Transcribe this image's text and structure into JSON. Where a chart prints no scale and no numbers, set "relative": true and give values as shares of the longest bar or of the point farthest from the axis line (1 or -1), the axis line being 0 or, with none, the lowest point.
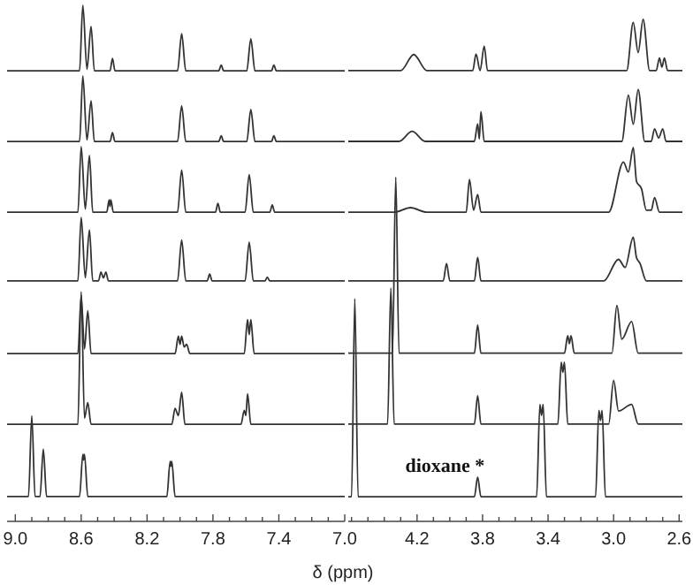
{
  "chart_data": [
    {
      "type": "line",
      "relative": true,
      "xlabel": "δ (ppm)",
      "xlim": [
        9.05,
        7.0
      ],
      "xticks": [
        {
          "value": 9.0,
          "label": "9.0"
        },
        {
          "value": 8.9,
          "label": null
        },
        {
          "value": 8.8,
          "label": null
        },
        {
          "value": 8.7,
          "label": null
        },
        8.6,
        {
          "value": 8.5,
          "label": null
        },
        {
          "value": 8.4,
          "label": null
        },
        {
          "value": 8.3,
          "label": null
        },
        8.2,
        {
          "value": 8.1,
          "label": null
        },
        {
          "value": 8.0,
          "label": null
        },
        {
          "value": 7.9,
          "label": null
        },
        7.8,
        {
          "value": 7.7,
          "label": null
        },
        {
          "value": 7.6,
          "label": null
        },
        {
          "value": 7.5,
          "label": null
        },
        7.4,
        {
          "value": 7.3,
          "label": null
        },
        {
          "value": 7.2,
          "label": null
        },
        {
          "value": 7.1,
          "label": null
        },
        {
          "value": 7.0,
          "label": "7.0"
        }
      ],
      "series": [
        {
          "color": "#333333",
          "x": [
            9.05,
            8.61,
            8.59,
            8.565,
            8.54,
            8.52,
            8.425,
            8.41,
            8.395,
            8.015,
            7.99,
            7.965,
            7.765,
            7.75,
            7.735,
            7.595,
            7.57,
            7.545,
            7.445,
            7.43,
            7.415,
            7.0
          ],
          "values": [
            0.873,
            0.873,
            1.0,
            0.876,
            0.959,
            0.873,
            0.873,
            0.897,
            0.873,
            0.873,
            0.945,
            0.873,
            0.873,
            0.884,
            0.873,
            0.873,
            0.935,
            0.873,
            0.873,
            0.884,
            0.873,
            0.873
          ]
        },
        {
          "color": "#333333",
          "x": [
            9.05,
            8.61,
            8.59,
            8.565,
            8.54,
            8.52,
            8.425,
            8.41,
            8.395,
            8.015,
            7.99,
            7.965,
            7.765,
            7.75,
            7.735,
            7.595,
            7.57,
            7.545,
            7.445,
            7.43,
            7.415,
            7.0
          ],
          "values": [
            0.736,
            0.736,
            0.863,
            0.739,
            0.815,
            0.736,
            0.736,
            0.753,
            0.736,
            0.736,
            0.805,
            0.736,
            0.736,
            0.747,
            0.736,
            0.736,
            0.798,
            0.736,
            0.736,
            0.747,
            0.736,
            0.736
          ]
        },
        {
          "color": "#333333",
          "x": [
            9.05,
            8.62,
            8.6,
            8.575,
            8.55,
            8.53,
            8.445,
            8.43,
            8.425,
            8.42,
            8.405,
            8.015,
            7.99,
            7.965,
            7.785,
            7.77,
            7.755,
            7.605,
            7.58,
            7.555,
            7.455,
            7.44,
            7.425,
            7.0
          ],
          "values": [
            0.599,
            0.599,
            0.726,
            0.605,
            0.709,
            0.599,
            0.599,
            0.623,
            0.61,
            0.623,
            0.599,
            0.599,
            0.681,
            0.599,
            0.599,
            0.616,
            0.599,
            0.599,
            0.672,
            0.599,
            0.599,
            0.613,
            0.599,
            0.599
          ]
        },
        {
          "color": "#333333",
          "x": [
            9.05,
            8.62,
            8.6,
            8.575,
            8.55,
            8.53,
            8.495,
            8.48,
            8.465,
            8.45,
            8.435,
            8.015,
            7.99,
            7.965,
            7.835,
            7.82,
            7.805,
            7.605,
            7.58,
            7.555,
            7.485,
            7.47,
            7.455,
            7.0
          ],
          "values": [
            0.466,
            0.466,
            0.589,
            0.472,
            0.565,
            0.466,
            0.466,
            0.483,
            0.472,
            0.483,
            0.466,
            0.466,
            0.545,
            0.466,
            0.466,
            0.479,
            0.466,
            0.466,
            0.541,
            0.466,
            0.466,
            0.473,
            0.466,
            0.466
          ]
        },
        {
          "color": "#333333",
          "x": [
            9.05,
            8.62,
            8.6,
            8.58,
            8.56,
            8.54,
            8.03,
            8.01,
            8.0,
            7.99,
            7.975,
            7.96,
            7.94,
            7.61,
            7.59,
            7.58,
            7.57,
            7.55,
            7.0
          ],
          "values": [
            0.325,
            0.325,
            0.438,
            0.334,
            0.408,
            0.325,
            0.325,
            0.359,
            0.343,
            0.359,
            0.338,
            0.343,
            0.325,
            0.325,
            0.391,
            0.362,
            0.391,
            0.325,
            0.325
          ]
        },
        {
          "color": "#333333",
          "x": [
            9.05,
            8.62,
            8.6,
            8.58,
            8.56,
            8.54,
            8.05,
            8.03,
            8.01,
            7.99,
            7.97,
            7.63,
            7.61,
            7.6,
            7.59,
            7.57,
            7.0
          ],
          "values": [
            0.188,
            0.188,
            0.445,
            0.2,
            0.23,
            0.188,
            0.188,
            0.219,
            0.205,
            0.25,
            0.188,
            0.188,
            0.215,
            0.205,
            0.247,
            0.188,
            0.188
          ]
        },
        {
          "color": "#333333",
          "x": [
            9.05,
            8.92,
            8.9,
            8.88,
            8.85,
            8.83,
            8.81,
            8.61,
            8.59,
            8.585,
            8.58,
            8.56,
            8.08,
            8.06,
            8.055,
            8.05,
            8.03,
            7.0
          ],
          "values": [
            0.048,
            0.048,
            0.205,
            0.048,
            0.048,
            0.14,
            0.048,
            0.048,
            0.13,
            0.119,
            0.13,
            0.048,
            0.048,
            0.116,
            0.107,
            0.116,
            0.048,
            0.048
          ]
        }
      ]
    },
    {
      "type": "line",
      "relative": true,
      "xlim": [
        4.62,
        2.58
      ],
      "xticks": [
        {
          "value": 4.6,
          "label": null
        },
        {
          "value": 4.5,
          "label": null
        },
        {
          "value": 4.4,
          "label": null
        },
        {
          "value": 4.3,
          "label": null
        },
        4.2,
        {
          "value": 4.1,
          "label": null
        },
        {
          "value": 4.0,
          "label": null
        },
        {
          "value": 3.9,
          "label": null
        },
        3.8,
        {
          "value": 3.7,
          "label": null
        },
        {
          "value": 3.6,
          "label": null
        },
        {
          "value": 3.5,
          "label": null
        },
        3.4,
        {
          "value": 3.3,
          "label": null
        },
        {
          "value": 3.2,
          "label": null
        },
        {
          "value": 3.1,
          "label": null
        },
        {
          "value": 3.0,
          "label": "3.0"
        },
        {
          "value": 2.9,
          "label": null
        },
        {
          "value": 2.8,
          "label": null
        },
        {
          "value": 2.7,
          "label": null
        },
        2.6
      ],
      "annotations": [
        {
          "text": "dioxane *",
          "x": 3.83,
          "y": 0.088
        }
      ],
      "series": [
        {
          "color": "#333333",
          "x": [
            4.62,
            4.3,
            4.22,
            4.14,
            3.86,
            3.84,
            3.815,
            3.79,
            3.77,
            2.92,
            2.88,
            2.85,
            2.82,
            2.78,
            2.74,
            2.72,
            2.705,
            2.69,
            2.67,
            2.58
          ],
          "values": [
            0.898,
            0.898,
            0.93,
            0.898,
            0.898,
            0.931,
            0.898,
            0.947,
            0.898,
            0.898,
            0.994,
            0.934,
            1.0,
            0.898,
            0.898,
            0.923,
            0.905,
            0.923,
            0.898,
            0.898
          ]
        },
        {
          "color": "#333333",
          "x": [
            4.62,
            4.31,
            4.23,
            4.15,
            3.85,
            3.83,
            3.82,
            3.81,
            3.79,
            2.95,
            2.91,
            2.88,
            2.85,
            2.81,
            2.77,
            2.75,
            2.725,
            2.7,
            2.68,
            2.58
          ],
          "values": [
            0.757,
            0.757,
            0.777,
            0.757,
            0.757,
            0.792,
            0.762,
            0.816,
            0.757,
            0.757,
            0.849,
            0.791,
            0.86,
            0.757,
            0.757,
            0.782,
            0.764,
            0.782,
            0.757,
            0.757
          ]
        },
        {
          "color": "#333333",
          "x": [
            4.62,
            4.34,
            4.24,
            4.14,
            3.9,
            3.88,
            3.855,
            3.83,
            3.81,
            3.03,
            2.94,
            2.91,
            2.88,
            2.86,
            2.83,
            2.8,
            2.77,
            2.75,
            2.72,
            2.58
          ],
          "values": [
            0.616,
            0.616,
            0.625,
            0.616,
            0.616,
            0.681,
            0.62,
            0.651,
            0.616,
            0.616,
            0.716,
            0.696,
            0.745,
            0.677,
            0.663,
            0.62,
            0.62,
            0.645,
            0.616,
            0.616
          ]
        },
        {
          "color": "#333333",
          "x": [
            4.62,
            4.04,
            4.02,
            4.0,
            3.85,
            3.83,
            3.81,
            3.06,
            2.97,
            2.93,
            2.88,
            2.86,
            2.84,
            2.8,
            2.58
          ],
          "values": [
            0.479,
            0.479,
            0.514,
            0.479,
            0.479,
            0.526,
            0.479,
            0.479,
            0.522,
            0.506,
            0.566,
            0.525,
            0.515,
            0.479,
            0.479
          ]
        },
        {
          "color": "#333333",
          "x": [
            4.62,
            4.35,
            4.33,
            4.31,
            3.85,
            3.83,
            3.81,
            3.3,
            3.28,
            3.27,
            3.26,
            3.24,
            3.01,
            2.98,
            2.95,
            2.89,
            2.85,
            2.58
          ],
          "values": [
            0.335,
            0.335,
            0.686,
            0.335,
            0.335,
            0.391,
            0.335,
            0.335,
            0.37,
            0.354,
            0.37,
            0.335,
            0.335,
            0.43,
            0.363,
            0.398,
            0.335,
            0.335
          ]
        },
        {
          "color": "#333333",
          "x": [
            4.62,
            4.38,
            4.36,
            4.34,
            3.85,
            3.83,
            3.81,
            3.34,
            3.32,
            3.31,
            3.3,
            3.28,
            3.03,
            3.0,
            2.97,
            2.89,
            2.85,
            2.58
          ],
          "values": [
            0.194,
            0.194,
            0.465,
            0.194,
            0.194,
            0.25,
            0.194,
            0.194,
            0.317,
            0.297,
            0.317,
            0.194,
            0.194,
            0.281,
            0.22,
            0.233,
            0.194,
            0.194
          ]
        },
        {
          "color": "#333333",
          "x": [
            4.62,
            4.6,
            4.58,
            4.56,
            3.85,
            3.83,
            3.81,
            3.47,
            3.45,
            3.44,
            3.43,
            3.41,
            3.11,
            3.09,
            3.08,
            3.07,
            3.05,
            2.58
          ],
          "values": [
            0.049,
            0.049,
            0.444,
            0.049,
            0.049,
            0.088,
            0.049,
            0.049,
            0.233,
            0.211,
            0.233,
            0.049,
            0.049,
            0.221,
            0.201,
            0.221,
            0.049,
            0.049
          ]
        }
      ]
    }
  ]
}
